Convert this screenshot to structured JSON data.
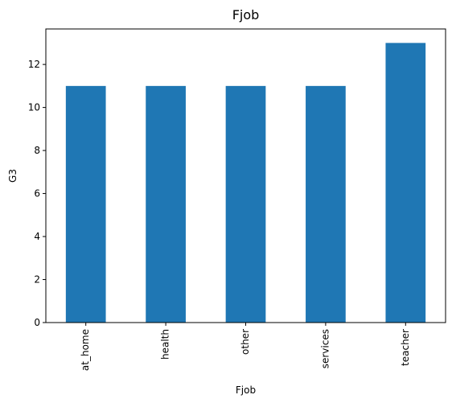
{
  "chart_data": {
    "type": "bar",
    "title": "Fjob",
    "xlabel": "Fjob",
    "ylabel": "G3",
    "categories": [
      "at_home",
      "health",
      "other",
      "services",
      "teacher"
    ],
    "values": [
      11,
      11,
      11,
      11,
      13
    ],
    "ylim": [
      0,
      13.65
    ],
    "yticks": [
      0,
      2,
      4,
      6,
      8,
      10,
      12
    ],
    "bar_color": "#1f77b4",
    "grid": false,
    "legend": "none"
  }
}
